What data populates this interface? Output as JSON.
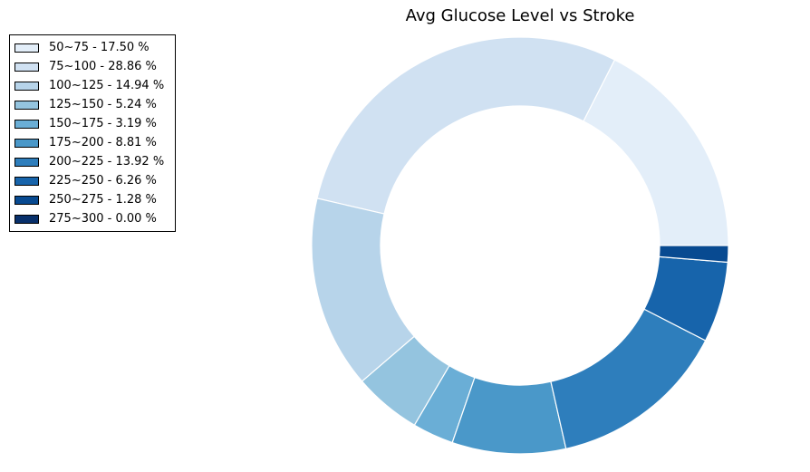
{
  "chart_data": {
    "type": "pie",
    "title": "Avg Glucose Level vs Stroke",
    "donut": true,
    "legend_position": "top-left",
    "categories": [
      "50~75",
      "75~100",
      "100~125",
      "125~150",
      "150~175",
      "175~200",
      "200~225",
      "225~250",
      "250~275",
      "275~300"
    ],
    "values": [
      17.5,
      28.86,
      14.94,
      5.24,
      3.19,
      8.81,
      13.92,
      6.26,
      1.28,
      0.0
    ],
    "legend_labels": [
      "50~75 - 17.50 %",
      "75~100 - 28.86 %",
      "100~125 - 14.94 %",
      "125~150 - 5.24 %",
      "150~175 - 3.19 %",
      "175~200 - 8.81 %",
      "200~225 - 13.92 %",
      "225~250 - 6.26 %",
      "250~275 - 1.28 %",
      "275~300 - 0.00 %"
    ],
    "colors": [
      "#e3eef9",
      "#d0e1f2",
      "#b7d4ea",
      "#94c4df",
      "#6aaed6",
      "#4a98c9",
      "#2e7ebc",
      "#1764ab",
      "#084a91",
      "#08306b"
    ]
  }
}
